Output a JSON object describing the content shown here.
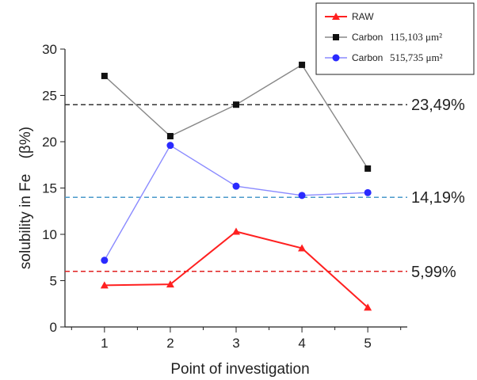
{
  "chart_data": {
    "type": "line",
    "x": [
      1,
      2,
      3,
      4,
      5
    ],
    "xlabel": "Point of investigation",
    "ylabel": "solubility in Fe",
    "ylabel_suffix": "(β%)",
    "xlim": [
      0.4,
      5.6
    ],
    "ylim": [
      0,
      30
    ],
    "yticks": [
      0,
      5,
      10,
      15,
      20,
      25,
      30
    ],
    "grid": false,
    "legend_position": "top-right",
    "series": [
      {
        "name": "RAW",
        "area": "",
        "color": "#ff2020",
        "marker": "triangle",
        "values": [
          4.5,
          4.6,
          10.3,
          8.5,
          2.1
        ]
      },
      {
        "name": "Carbon",
        "area": "115,103 μm²",
        "color": "#555555",
        "marker": "square",
        "values": [
          27.1,
          20.6,
          24.0,
          28.3,
          17.1
        ]
      },
      {
        "name": "Carbon",
        "area": "515,735 μm²",
        "color": "#2a2aff",
        "marker": "circle",
        "values": [
          7.2,
          19.6,
          15.2,
          14.2,
          14.5
        ]
      }
    ],
    "reference_lines": [
      {
        "label": "23,49%",
        "value": 24.0,
        "color": "#333333"
      },
      {
        "label": "14,19%",
        "value": 14.0,
        "color": "#4a9acb"
      },
      {
        "label": "5,99%",
        "value": 6.0,
        "color": "#e02020"
      }
    ]
  }
}
